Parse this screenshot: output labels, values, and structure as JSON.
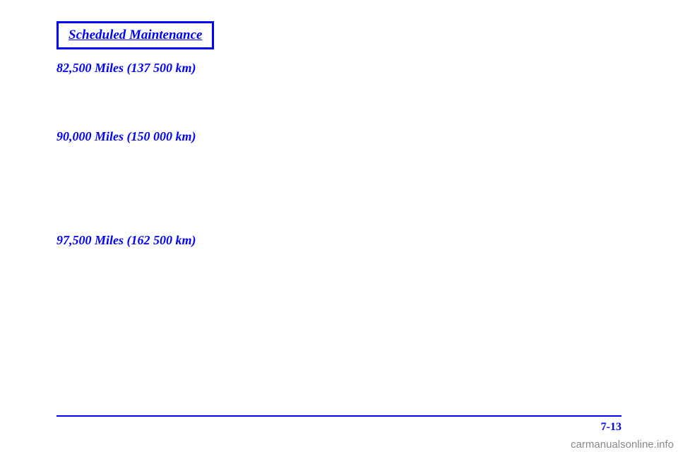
{
  "badge": "Scheduled Maintenance",
  "sections": [
    {
      "header": "82,500 Miles (137 500 km)"
    },
    {
      "header": "90,000 Miles (150 000 km)"
    },
    {
      "header": "97,500 Miles (162 500 km)"
    }
  ],
  "pageNumber": "7-13",
  "watermark": "carmanualsonline.info"
}
